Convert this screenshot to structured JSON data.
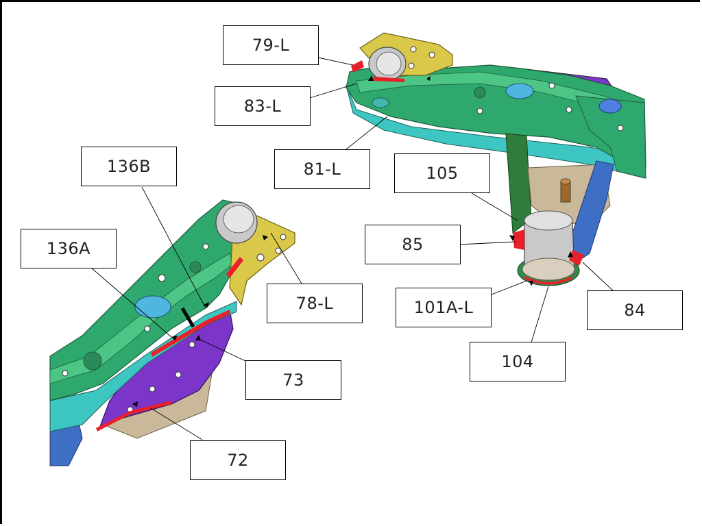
{
  "callouts": {
    "c79L": "79-L",
    "c83L": "83-L",
    "c81L": "81-L",
    "c105": "105",
    "c85": "85",
    "c101AL": "101A-L",
    "c84": "84",
    "c104": "104",
    "c136B": "136B",
    "c136A": "136A",
    "c78L": "78-L",
    "c73": "73",
    "c72": "72"
  },
  "colors": {
    "frame_green": "#2fa86e",
    "frame_cyan": "#3ec7c2",
    "bracket_yellow": "#d9c84a",
    "plate_purple": "#7b35c8",
    "bracket_blue": "#3f6fc4",
    "seal_red": "#e8202a",
    "bushing_grey": "#c9c9c9",
    "tan": "#c9b89a"
  }
}
